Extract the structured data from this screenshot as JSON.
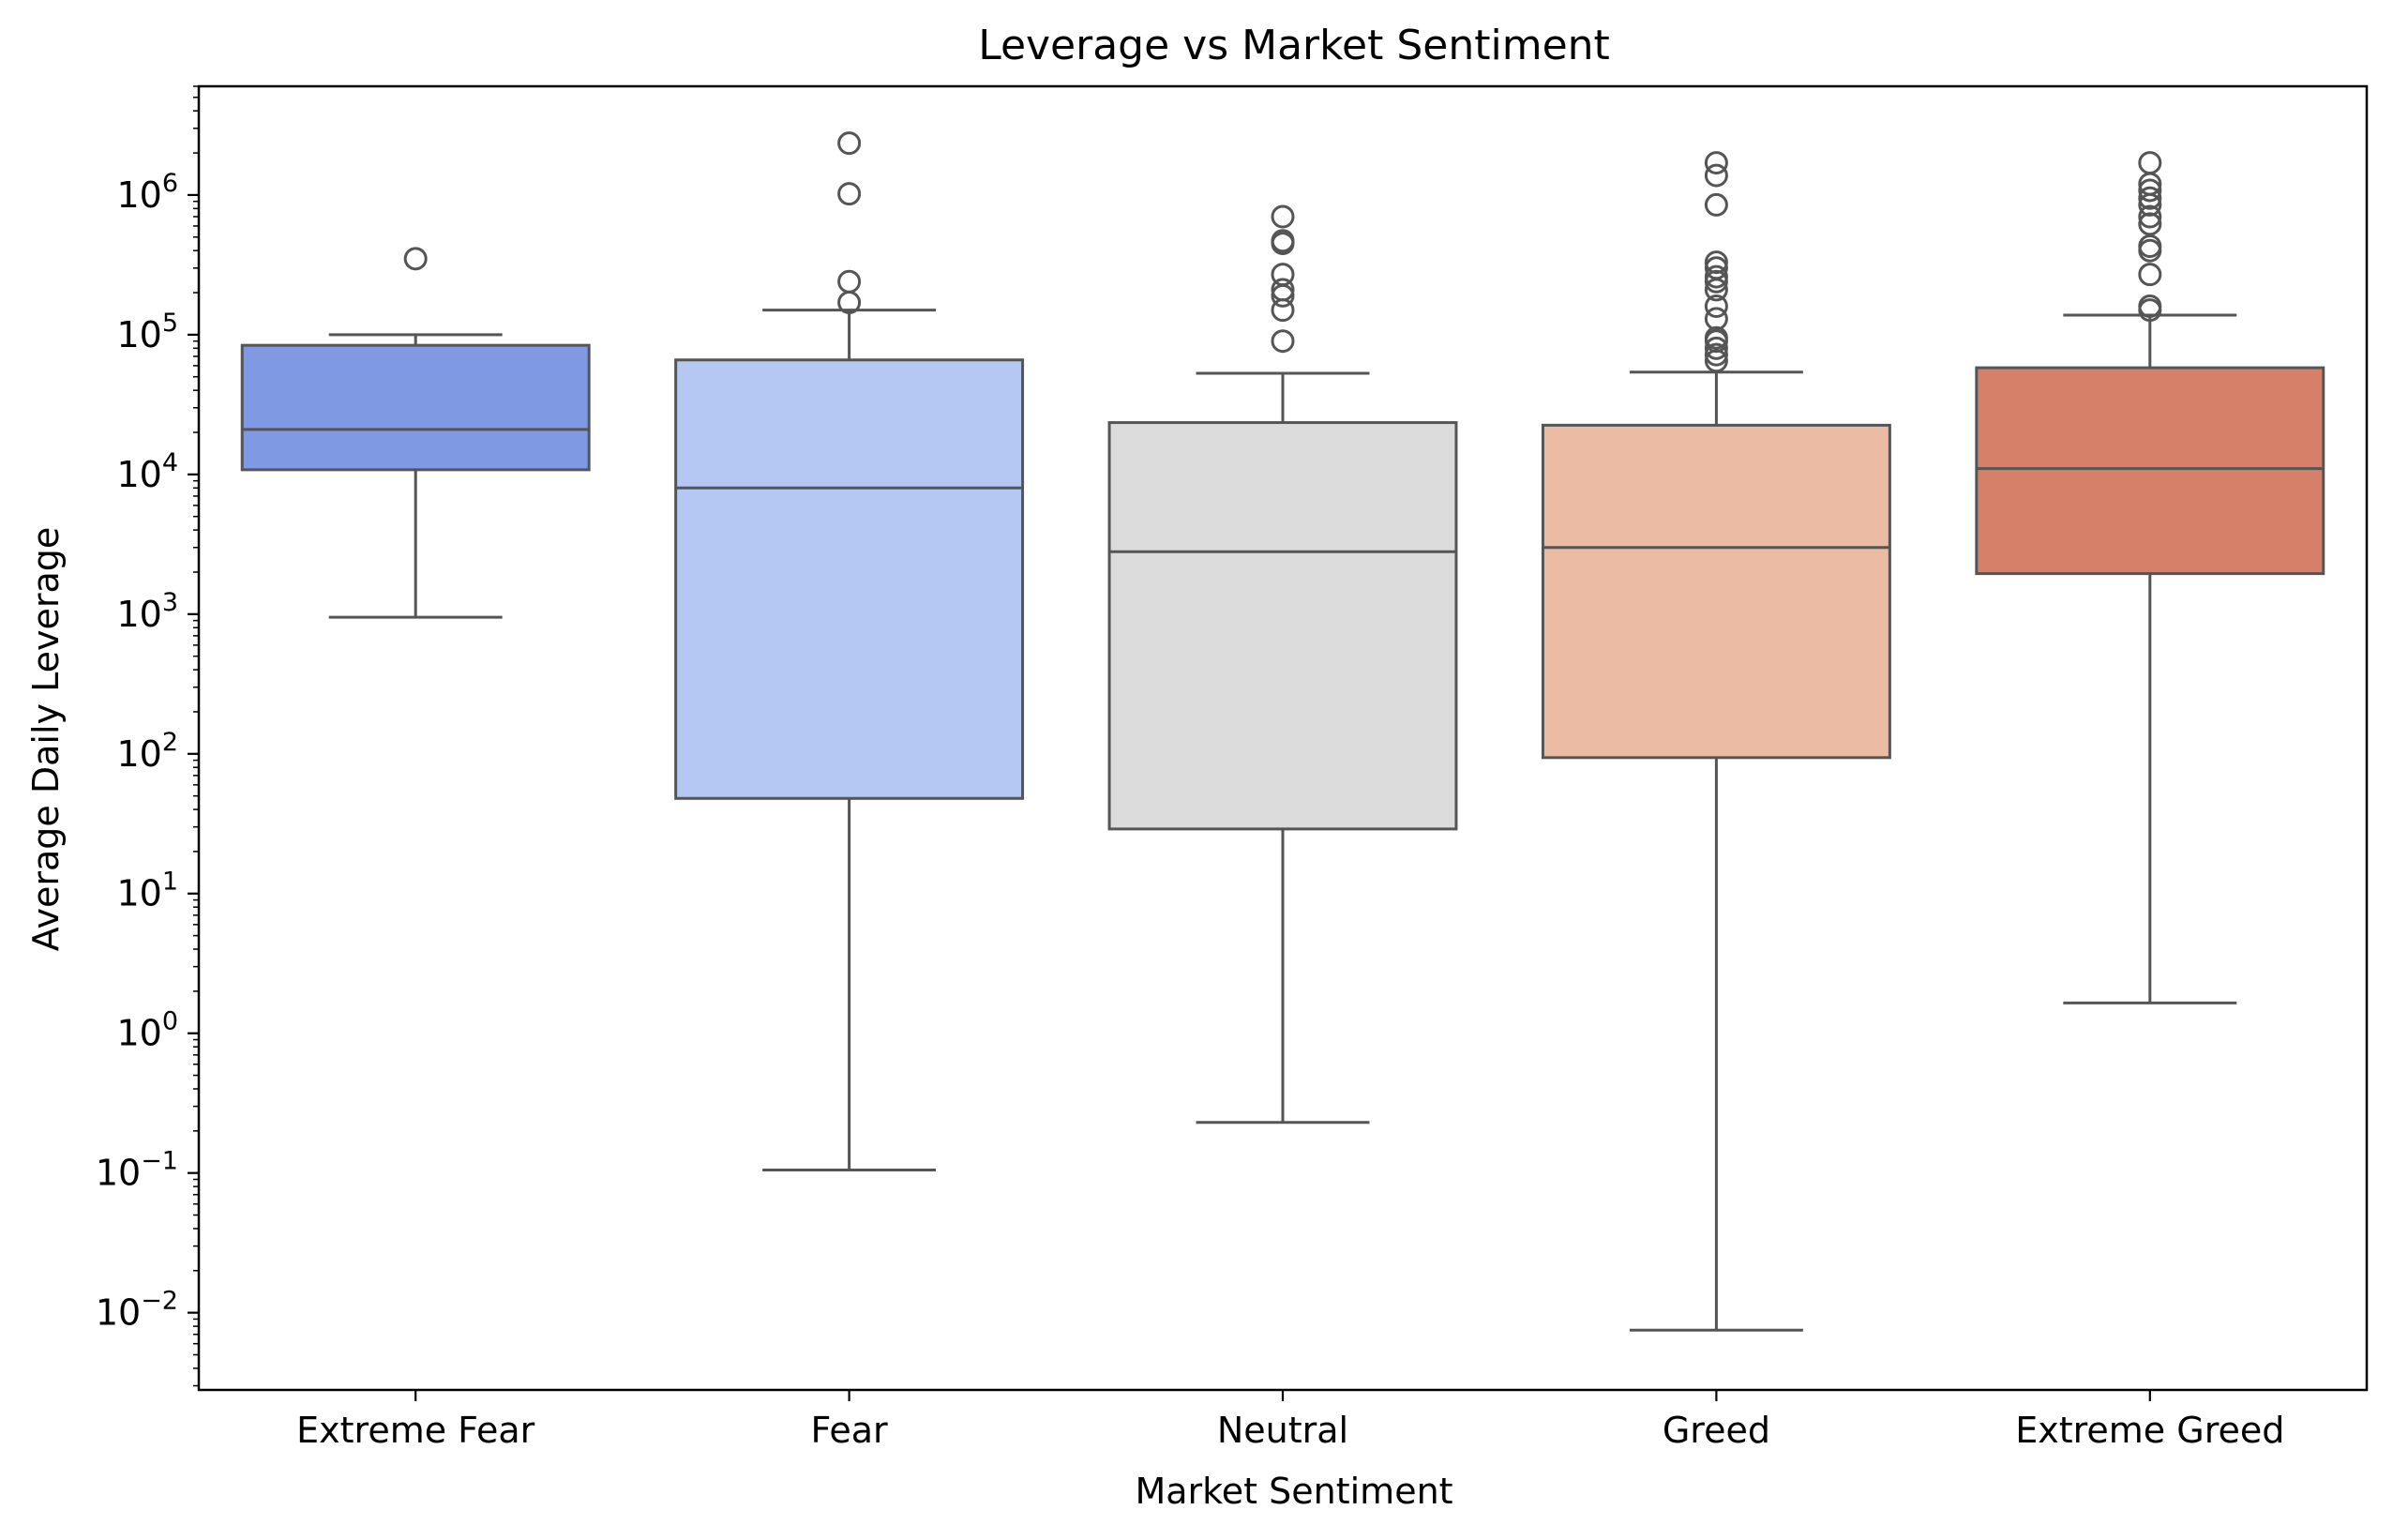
{
  "chart_data": {
    "type": "box",
    "title": "Leverage vs Market Sentiment",
    "xlabel": "Market Sentiment",
    "ylabel": "Average Daily Leverage",
    "yscale": "log",
    "ylim": [
      0.0028,
      6000000
    ],
    "yticks": [
      {
        "value": 0.01,
        "base": "10",
        "exp": "−2"
      },
      {
        "value": 0.1,
        "base": "10",
        "exp": "−1"
      },
      {
        "value": 1,
        "base": "10",
        "exp": "0"
      },
      {
        "value": 10,
        "base": "10",
        "exp": "1"
      },
      {
        "value": 100,
        "base": "10",
        "exp": "2"
      },
      {
        "value": 1000,
        "base": "10",
        "exp": "3"
      },
      {
        "value": 10000,
        "base": "10",
        "exp": "4"
      },
      {
        "value": 100000,
        "base": "10",
        "exp": "5"
      },
      {
        "value": 1000000,
        "base": "10",
        "exp": "6"
      }
    ],
    "grid": false,
    "categories": [
      "Extreme Fear",
      "Fear",
      "Neutral",
      "Greed",
      "Extreme Greed"
    ],
    "colors": [
      "#7f9ae3",
      "#b3c8f2",
      "#dcdcdc",
      "#ecbba4",
      "#d6806a"
    ],
    "edge_color": "#555555",
    "boxes": [
      {
        "category": "Extreme Fear",
        "whisker_low": 950,
        "q1": 10800,
        "median": 21000,
        "q3": 84000,
        "whisker_high": 100000,
        "outliers": [
          350000
        ]
      },
      {
        "category": "Fear",
        "whisker_low": 0.105,
        "q1": 48,
        "median": 8000,
        "q3": 66000,
        "whisker_high": 150000,
        "outliers": [
          170000,
          240000,
          1020000,
          2350000
        ]
      },
      {
        "category": "Neutral",
        "whisker_low": 0.23,
        "q1": 29,
        "median": 2800,
        "q3": 23500,
        "whisker_high": 53000,
        "outliers": [
          90000,
          150000,
          190000,
          210000,
          270000,
          450000,
          470000,
          700000
        ]
      },
      {
        "category": "Greed",
        "whisker_low": 0.0075,
        "q1": 94,
        "median": 3000,
        "q3": 22500,
        "whisker_high": 54000,
        "outliers": [
          65000,
          72000,
          80000,
          90000,
          95000,
          130000,
          160000,
          210000,
          240000,
          260000,
          300000,
          330000,
          850000,
          1380000,
          1700000
        ]
      },
      {
        "category": "Extreme Greed",
        "whisker_low": 1.65,
        "q1": 1950,
        "median": 11000,
        "q3": 58000,
        "whisker_high": 138000,
        "outliers": [
          150000,
          160000,
          270000,
          400000,
          430000,
          620000,
          700000,
          850000,
          950000,
          1080000,
          1200000,
          1700000
        ]
      }
    ]
  }
}
